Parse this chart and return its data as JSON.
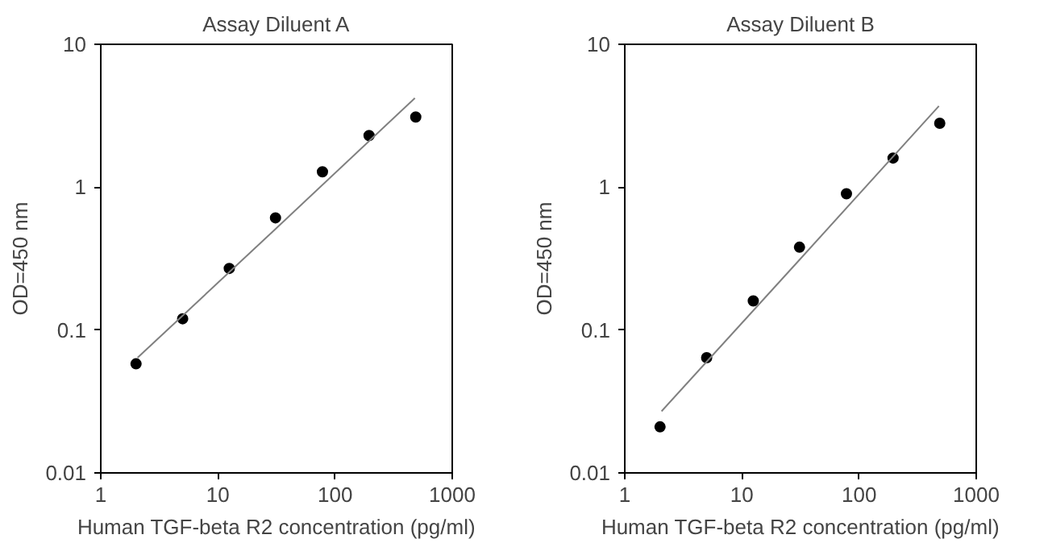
{
  "chart_data": [
    {
      "type": "scatter",
      "title": "Assay Diluent A",
      "xlabel": "Human TGF-beta R2 concentration (pg/ml)",
      "ylabel": "OD=450 nm",
      "log": "xy",
      "xlim": [
        1,
        1000
      ],
      "ylim": [
        0.01,
        10
      ],
      "xticks": [
        1,
        10,
        100,
        1000
      ],
      "yticks": [
        0.01,
        0.1,
        1,
        10
      ],
      "x": [
        2,
        5,
        12.5,
        31,
        78,
        195,
        488
      ],
      "series": [
        {
          "marker": "circle",
          "color": "#000000",
          "values": [
            0.058,
            0.12,
            0.27,
            0.61,
            1.28,
            2.3,
            3.1
          ]
        },
        {
          "type": "line",
          "color": "#808080",
          "x": [
            2.06,
            31,
            480
          ],
          "values": [
            0.064,
            0.51,
            4.2
          ]
        }
      ]
    },
    {
      "type": "scatter",
      "title": "Assay Diluent B",
      "xlabel": "Human TGF-beta R2 concentration (pg/ml)",
      "ylabel": "OD=450 nm",
      "log": "xy",
      "xlim": [
        1,
        1000
      ],
      "ylim": [
        0.01,
        10
      ],
      "xticks": [
        1,
        10,
        100,
        1000
      ],
      "yticks": [
        0.01,
        0.1,
        1,
        10
      ],
      "x": [
        2,
        5,
        12.5,
        31,
        78,
        195,
        488
      ],
      "series": [
        {
          "marker": "circle",
          "color": "#000000",
          "values": [
            0.021,
            0.064,
            0.16,
            0.38,
            0.9,
            1.6,
            2.8
          ]
        },
        {
          "type": "line",
          "color": "#808080",
          "x": [
            2.06,
            31,
            480
          ],
          "values": [
            0.027,
            0.31,
            3.7
          ]
        }
      ]
    }
  ]
}
